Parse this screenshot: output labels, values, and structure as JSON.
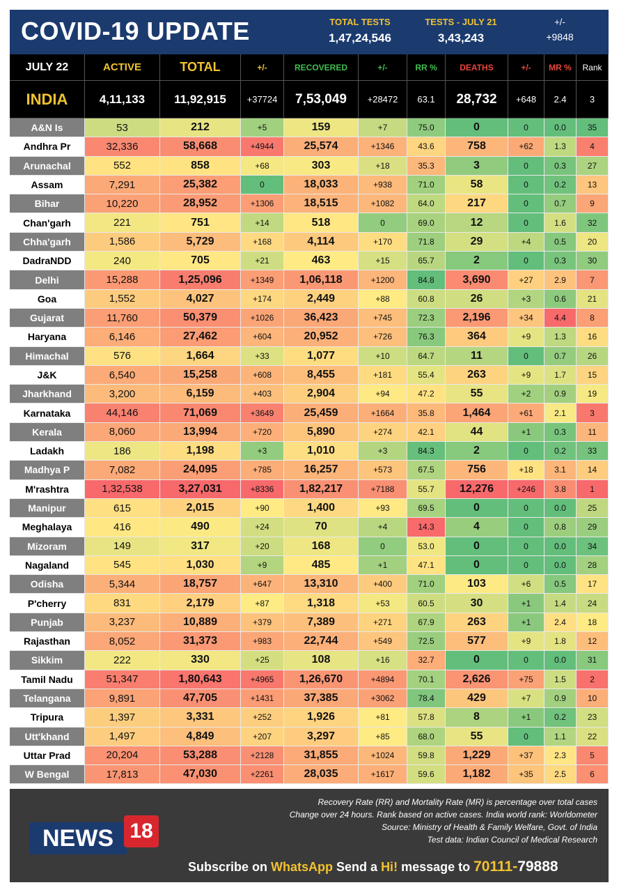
{
  "header": {
    "title": "COVID-19 UPDATE",
    "total_tests_label": "TOTAL TESTS",
    "total_tests": "1,47,24,546",
    "tests_day_label": "TESTS - JULY  21",
    "tests_day": "3,43,243",
    "change_label": "+/-",
    "change": "+9848"
  },
  "columns": {
    "date": "JULY 22",
    "active": "ACTIVE",
    "total": "TOTAL",
    "pm1": "+/-",
    "recovered": "RECOVERED",
    "pm2": "+/-",
    "rr": "RR %",
    "deaths": "DEATHS",
    "pm3": "+/-",
    "mr": "MR %",
    "rank": "Rank"
  },
  "colors": {
    "header_bg": "#1b3b6f",
    "accent": "#f2c230",
    "green": "#3fbf4f",
    "red": "#d8262e",
    "footer_bg": "#3a3a3a"
  },
  "chart_data": {
    "type": "table",
    "title": "COVID-19 UPDATE",
    "india": [
      "INDIA",
      "4,11,133",
      "11,92,915",
      "+37724",
      "7,53,049",
      "+28472",
      "63.1",
      "28,732",
      "+648",
      "2.4",
      "3"
    ],
    "rows": [
      [
        "A&N Is",
        "53",
        "212",
        "+5",
        "159",
        "+7",
        "75.0",
        "0",
        "0",
        "0.0",
        "35"
      ],
      [
        "Andhra Pr",
        "32,336",
        "58,668",
        "+4944",
        "25,574",
        "+1346",
        "43.6",
        "758",
        "+62",
        "1.3",
        "4"
      ],
      [
        "Arunachal",
        "552",
        "858",
        "+68",
        "303",
        "+18",
        "35.3",
        "3",
        "0",
        "0.3",
        "27"
      ],
      [
        "Assam",
        "7,291",
        "25,382",
        "0",
        "18,033",
        "+938",
        "71.0",
        "58",
        "0",
        "0.2",
        "13"
      ],
      [
        "Bihar",
        "10,220",
        "28,952",
        "+1306",
        "18,515",
        "+1082",
        "64.0",
        "217",
        "0",
        "0.7",
        "9"
      ],
      [
        "Chan'garh",
        "221",
        "751",
        "+14",
        "518",
        "0",
        "69.0",
        "12",
        "0",
        "1.6",
        "32"
      ],
      [
        "Chha'garh",
        "1,586",
        "5,729",
        "+168",
        "4,114",
        "+170",
        "71.8",
        "29",
        "+4",
        "0.5",
        "20"
      ],
      [
        "DadraNDD",
        "240",
        "705",
        "+21",
        "463",
        "+15",
        "65.7",
        "2",
        "0",
        "0.3",
        "30"
      ],
      [
        "Delhi",
        "15,288",
        "1,25,096",
        "+1349",
        "1,06,118",
        "+1200",
        "84.8",
        "3,690",
        "+27",
        "2.9",
        "7"
      ],
      [
        "Goa",
        "1,552",
        "4,027",
        "+174",
        "2,449",
        "+88",
        "60.8",
        "26",
        "+3",
        "0.6",
        "21"
      ],
      [
        "Gujarat",
        "11,760",
        "50,379",
        "+1026",
        "36,423",
        "+745",
        "72.3",
        "2,196",
        "+34",
        "4.4",
        "8"
      ],
      [
        "Haryana",
        "6,146",
        "27,462",
        "+604",
        "20,952",
        "+726",
        "76.3",
        "364",
        "+9",
        "1.3",
        "16"
      ],
      [
        "Himachal",
        "576",
        "1,664",
        "+33",
        "1,077",
        "+10",
        "64.7",
        "11",
        "0",
        "0.7",
        "26"
      ],
      [
        "J&K",
        "6,540",
        "15,258",
        "+608",
        "8,455",
        "+181",
        "55.4",
        "263",
        "+9",
        "1.7",
        "15"
      ],
      [
        "Jharkhand",
        "3,200",
        "6,159",
        "+403",
        "2,904",
        "+94",
        "47.2",
        "55",
        "+2",
        "0.9",
        "19"
      ],
      [
        "Karnataka",
        "44,146",
        "71,069",
        "+3649",
        "25,459",
        "+1664",
        "35.8",
        "1,464",
        "+61",
        "2.1",
        "3"
      ],
      [
        "Kerala",
        "8,060",
        "13,994",
        "+720",
        "5,890",
        "+274",
        "42.1",
        "44",
        "+1",
        "0.3",
        "11"
      ],
      [
        "Ladakh",
        "186",
        "1,198",
        "+3",
        "1,010",
        "+3",
        "84.3",
        "2",
        "0",
        "0.2",
        "33"
      ],
      [
        "Madhya P",
        "7,082",
        "24,095",
        "+785",
        "16,257",
        "+573",
        "67.5",
        "756",
        "+18",
        "3.1",
        "14"
      ],
      [
        "M'rashtra",
        "1,32,538",
        "3,27,031",
        "+8336",
        "1,82,217",
        "+7188",
        "55.7",
        "12,276",
        "+246",
        "3.8",
        "1"
      ],
      [
        "Manipur",
        "615",
        "2,015",
        "+90",
        "1,400",
        "+93",
        "69.5",
        "0",
        "0",
        "0.0",
        "25"
      ],
      [
        "Meghalaya",
        "416",
        "490",
        "+24",
        "70",
        "+4",
        "14.3",
        "4",
        "0",
        "0.8",
        "29"
      ],
      [
        "Mizoram",
        "149",
        "317",
        "+20",
        "168",
        "0",
        "53.0",
        "0",
        "0",
        "0.0",
        "34"
      ],
      [
        "Nagaland",
        "545",
        "1,030",
        "+9",
        "485",
        "+1",
        "47.1",
        "0",
        "0",
        "0.0",
        "28"
      ],
      [
        "Odisha",
        "5,344",
        "18,757",
        "+647",
        "13,310",
        "+400",
        "71.0",
        "103",
        "+6",
        "0.5",
        "17"
      ],
      [
        "P'cherry",
        "831",
        "2,179",
        "+87",
        "1,318",
        "+53",
        "60.5",
        "30",
        "+1",
        "1.4",
        "24"
      ],
      [
        "Punjab",
        "3,237",
        "10,889",
        "+379",
        "7,389",
        "+271",
        "67.9",
        "263",
        "+1",
        "2.4",
        "18"
      ],
      [
        "Rajasthan",
        "8,052",
        "31,373",
        "+983",
        "22,744",
        "+549",
        "72.5",
        "577",
        "+9",
        "1.8",
        "12"
      ],
      [
        "Sikkim",
        "222",
        "330",
        "+25",
        "108",
        "+16",
        "32.7",
        "0",
        "0",
        "0.0",
        "31"
      ],
      [
        "Tamil Nadu",
        "51,347",
        "1,80,643",
        "+4965",
        "1,26,670",
        "+4894",
        "70.1",
        "2,626",
        "+75",
        "1.5",
        "2"
      ],
      [
        "Telangana",
        "9,891",
        "47,705",
        "+1431",
        "37,385",
        "+3062",
        "78.4",
        "429",
        "+7",
        "0.9",
        "10"
      ],
      [
        "Tripura",
        "1,397",
        "3,331",
        "+252",
        "1,926",
        "+81",
        "57.8",
        "8",
        "+1",
        "0.2",
        "23"
      ],
      [
        "Utt'khand",
        "1,497",
        "4,849",
        "+207",
        "3,297",
        "+85",
        "68.0",
        "55",
        "0",
        "1.1",
        "22"
      ],
      [
        "Uttar Prad",
        "20,204",
        "53,288",
        "+2128",
        "31,855",
        "+1024",
        "59.8",
        "1,229",
        "+37",
        "2.3",
        "5"
      ],
      [
        "W Bengal",
        "17,813",
        "47,030",
        "+2261",
        "28,035",
        "+1617",
        "59.6",
        "1,182",
        "+35",
        "2.5",
        "6"
      ]
    ]
  },
  "footer": {
    "note1": "Recovery Rate (RR) and Mortality Rate (MR) is percentage over total cases",
    "note2": "Change over 24 hours. Rank based on active cases. India world rank: Worldometer",
    "note3": "Source: Ministry of Health & Family Welfare, Govt. of India",
    "note4": "Test data: Indian Council of Medical Research",
    "logo_text": "NEWS",
    "logo_num": "18",
    "sub1": "Subscribe on ",
    "sub2": "WhatsApp",
    "sub3": " Send a ",
    "sub4": "Hi!",
    "sub5": " message to ",
    "sub6": "70111-",
    "sub7": "79888"
  }
}
